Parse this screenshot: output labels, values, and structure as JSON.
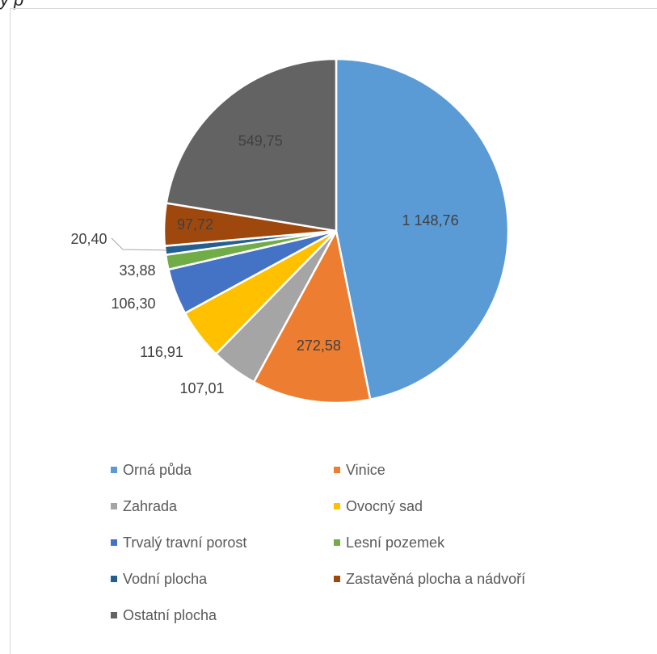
{
  "page": {
    "top_cut_text": "y          p"
  },
  "chart_data": {
    "type": "pie",
    "title": "",
    "start_angle_deg": 0,
    "direction": "clockwise",
    "slices": [
      {
        "name": "Orná půda",
        "value": 1148.76,
        "label": "1 148,76",
        "color": "#5B9BD5",
        "label_inside": true
      },
      {
        "name": "Vinice",
        "value": 272.58,
        "label": "272,58",
        "color": "#ED7D31",
        "label_inside": true
      },
      {
        "name": "Zahrada",
        "value": 107.01,
        "label": "107,01",
        "color": "#A5A5A5",
        "label_inside": false
      },
      {
        "name": "Ovocný sad",
        "value": 116.91,
        "label": "116,91",
        "color": "#FFC000",
        "label_inside": false
      },
      {
        "name": "Trvalý travní porost",
        "value": 106.3,
        "label": "106,30",
        "color": "#4472C4",
        "label_inside": false
      },
      {
        "name": "Lesní pozemek",
        "value": 33.88,
        "label": "33,88",
        "color": "#70AD47",
        "label_inside": false
      },
      {
        "name": "Vodní plocha",
        "value": 20.4,
        "label": "20,40",
        "color": "#255E91",
        "label_inside": false,
        "leader_line": true
      },
      {
        "name": "Zastavěná plocha a nádvoří",
        "value": 97.72,
        "label": "97,72",
        "color": "#9E480E",
        "label_inside": true
      },
      {
        "name": "Ostatní plocha",
        "value": 549.75,
        "label": "549,75",
        "color": "#636363",
        "label_inside": true
      }
    ],
    "legend": {
      "placement": "bottom",
      "columns": 2,
      "entries": [
        "Orná půda",
        "Vinice",
        "Zahrada",
        "Ovocný sad",
        "Trvalý travní porost",
        "Lesní pozemek",
        "Vodní plocha",
        "Zastavěná plocha a nádvoří",
        "Ostatní plocha"
      ]
    }
  }
}
